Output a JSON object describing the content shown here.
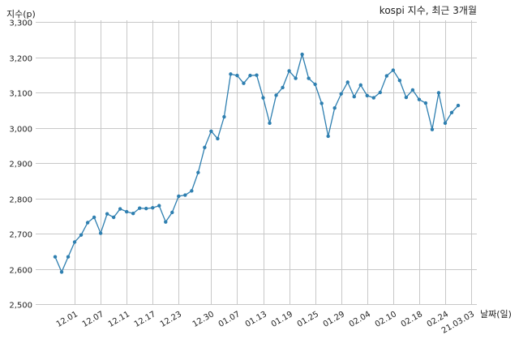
{
  "chart_data": {
    "type": "line",
    "title": "kospi 지수, 최근 3개월",
    "xlabel": "날짜(일)",
    "ylabel": "지수(p)",
    "ylim": [
      2500,
      3300
    ],
    "yticks": [
      "2,500",
      "2,600",
      "2,700",
      "2,800",
      "2,900",
      "3,000",
      "3,100",
      "3,200",
      "3,300"
    ],
    "yticks_values": [
      2500,
      2600,
      2700,
      2800,
      2900,
      3000,
      3100,
      3200,
      3300
    ],
    "xticks": [
      {
        "label": "12.01",
        "index": 3
      },
      {
        "label": "12.07",
        "index": 7
      },
      {
        "label": "12.11",
        "index": 11
      },
      {
        "label": "12.17",
        "index": 15
      },
      {
        "label": "12.23",
        "index": 19
      },
      {
        "label": "12.30",
        "index": 24
      },
      {
        "label": "01.07",
        "index": 28
      },
      {
        "label": "01.13",
        "index": 32
      },
      {
        "label": "01.19",
        "index": 36
      },
      {
        "label": "01.25",
        "index": 40
      },
      {
        "label": "01.29",
        "index": 44
      },
      {
        "label": "02.04",
        "index": 48
      },
      {
        "label": "02.10",
        "index": 52
      },
      {
        "label": "02.18",
        "index": 56
      },
      {
        "label": "02.24",
        "index": 60
      },
      {
        "label": "21.03.03",
        "index": 64
      }
    ],
    "grid": true,
    "series": [
      {
        "color": "#2e7fb0",
        "values": [
          2634,
          2591,
          2634,
          2676,
          2696,
          2731,
          2746,
          2701,
          2756,
          2746,
          2770,
          2762,
          2757,
          2772,
          2771,
          2773,
          2779,
          2733,
          2760,
          2806,
          2809,
          2821,
          2873,
          2944,
          2990,
          2969,
          3031,
          3152,
          3148,
          3126,
          3148,
          3149,
          3085,
          3013,
          3092,
          3114,
          3161,
          3140,
          3208,
          3140,
          3123,
          3069,
          2976,
          3056,
          3096,
          3129,
          3088,
          3121,
          3091,
          3085,
          3100,
          3147,
          3163,
          3134,
          3086,
          3107,
          3080,
          3070,
          2995,
          3099,
          3013,
          3043,
          3063
        ]
      }
    ]
  }
}
